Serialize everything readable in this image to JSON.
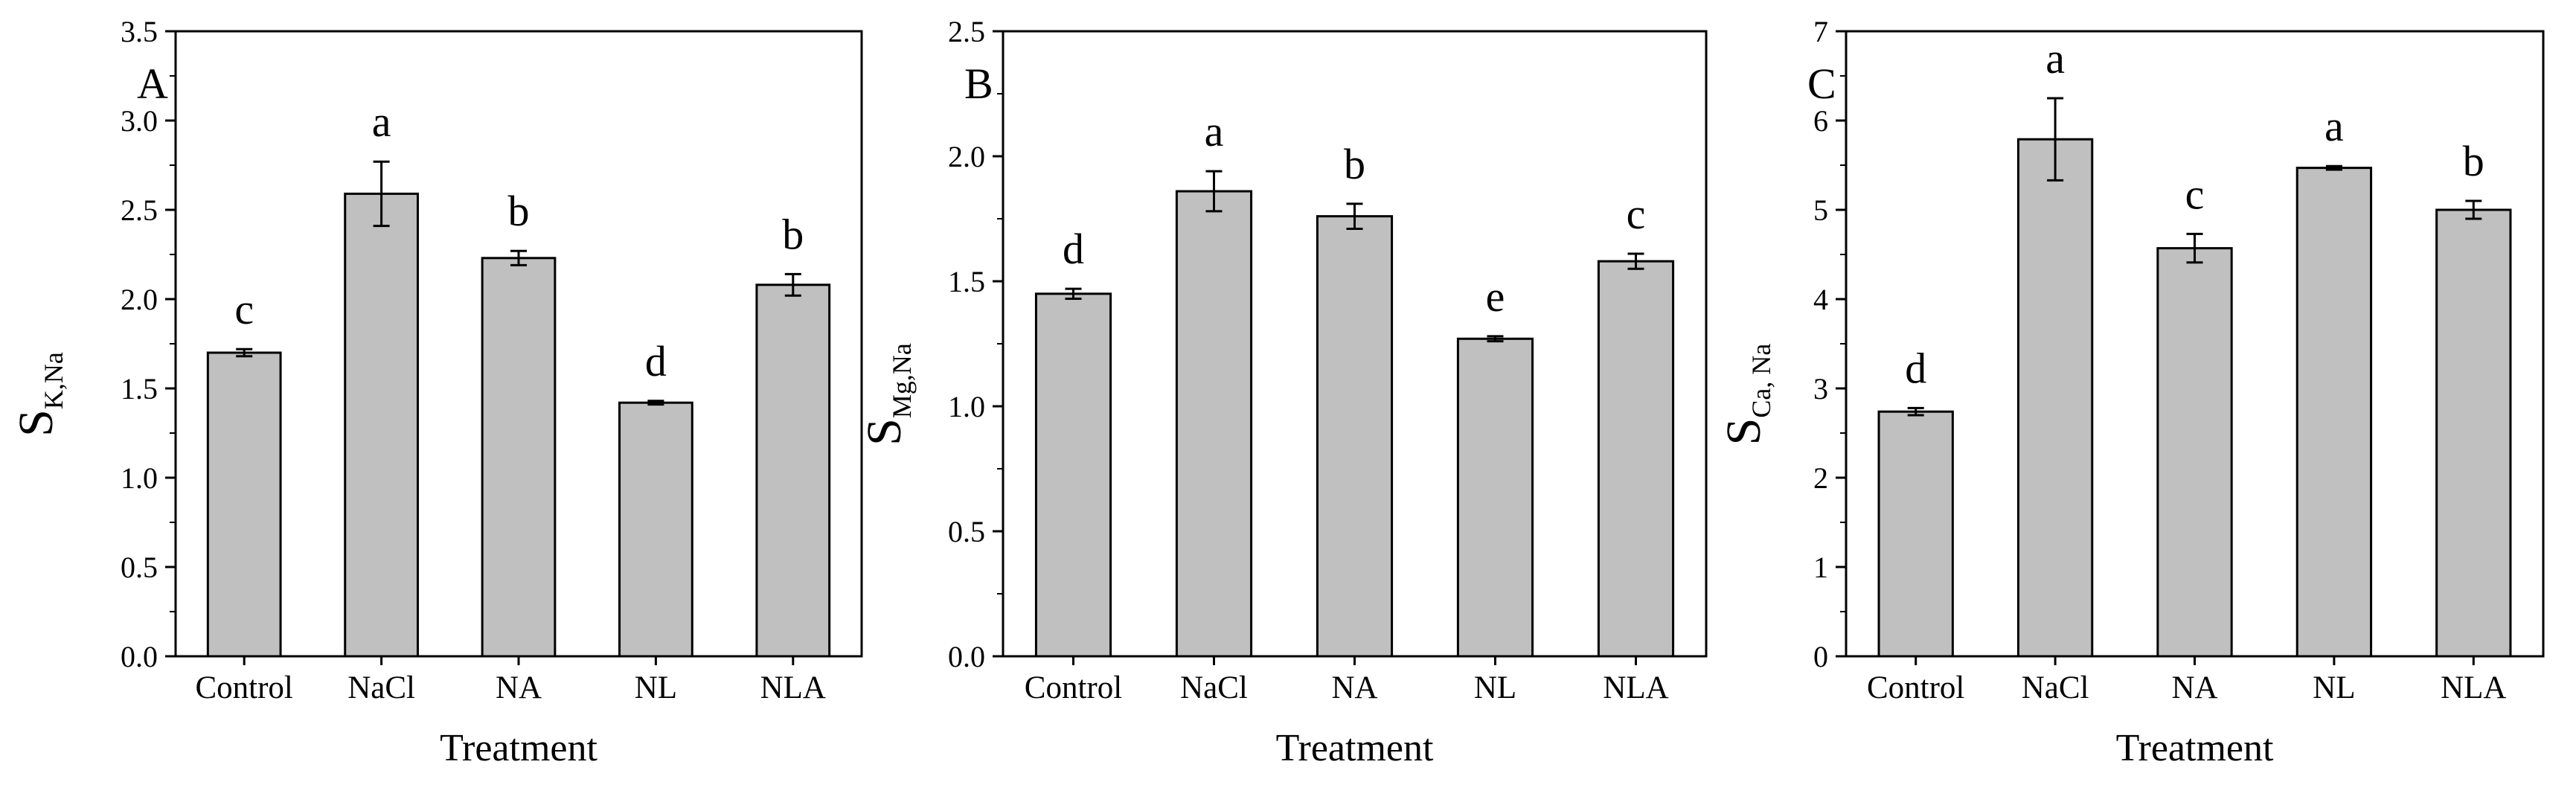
{
  "chart_data": [
    {
      "type": "bar",
      "panel": "A",
      "categories": [
        "Control",
        "NaCl",
        "NA",
        "NL",
        "NLA"
      ],
      "values": [
        1.7,
        2.59,
        2.23,
        1.42,
        2.08
      ],
      "errors": [
        0.02,
        0.18,
        0.04,
        0.01,
        0.06
      ],
      "significance": [
        "c",
        "a",
        "b",
        "d",
        "b"
      ],
      "ylabel_main": "S",
      "ylabel_sub": "K,Na",
      "xlabel": "Treatment",
      "ylim": [
        0,
        3.5
      ],
      "yticks": [
        "0.0",
        "0.5",
        "1.0",
        "1.5",
        "2.0",
        "2.5",
        "3.0",
        "3.5"
      ],
      "bar_color": "#c0c0c0"
    },
    {
      "type": "bar",
      "panel": "B",
      "categories": [
        "Control",
        "NaCl",
        "NA",
        "NL",
        "NLA"
      ],
      "values": [
        1.45,
        1.86,
        1.76,
        1.27,
        1.58
      ],
      "errors": [
        0.02,
        0.08,
        0.05,
        0.01,
        0.03
      ],
      "significance": [
        "d",
        "a",
        "b",
        "e",
        "c"
      ],
      "ylabel_main": "S",
      "ylabel_sub": "Mg,Na",
      "xlabel": "Treatment",
      "ylim": [
        0,
        2.5
      ],
      "yticks": [
        "0.0",
        "0.5",
        "1.0",
        "1.5",
        "2.0",
        "2.5"
      ],
      "bar_color": "#c0c0c0"
    },
    {
      "type": "bar",
      "panel": "C",
      "categories": [
        "Control",
        "NaCl",
        "NA",
        "NL",
        "NLA"
      ],
      "values": [
        2.74,
        5.79,
        4.57,
        5.47,
        5.0
      ],
      "errors": [
        0.04,
        0.46,
        0.16,
        0.02,
        0.1
      ],
      "significance": [
        "d",
        "a",
        "c",
        "a",
        "b"
      ],
      "ylabel_main": "S",
      "ylabel_sub": "Ca, Na",
      "xlabel": "Treatment",
      "ylim": [
        0,
        7
      ],
      "yticks": [
        "0",
        "1",
        "2",
        "3",
        "4",
        "5",
        "6",
        "7"
      ],
      "bar_color": "#c0c0c0"
    }
  ]
}
